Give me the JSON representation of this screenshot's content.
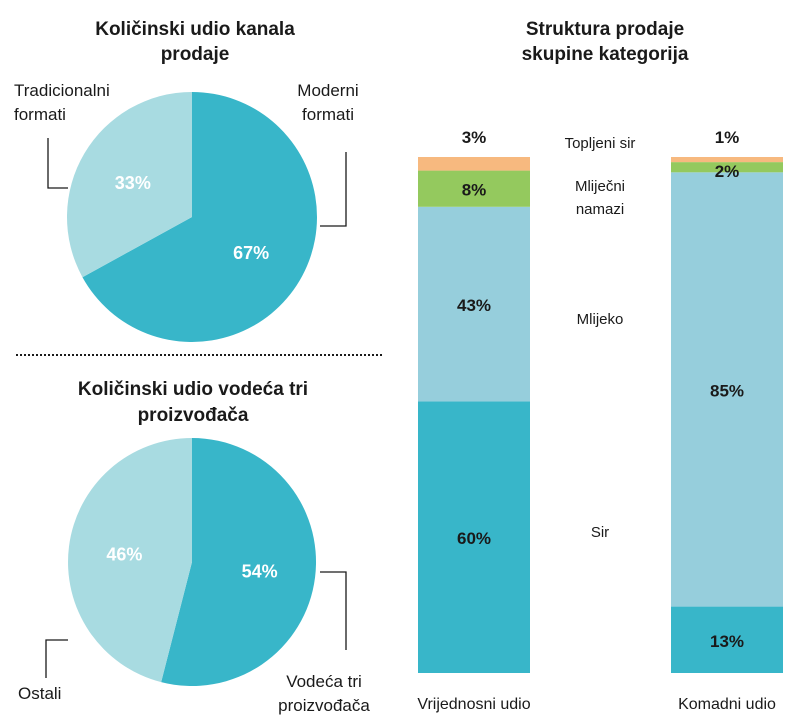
{
  "colors": {
    "dark_teal": "#38b6c9",
    "light_teal": "#a8dbe1",
    "mid_blue": "#96cedc",
    "green": "#94c95e",
    "orange": "#f7b97f",
    "text": "#1a1a1a",
    "white": "#ffffff"
  },
  "chart_data": [
    {
      "type": "pie",
      "title": "Količinski udio kanala prodaje",
      "title_lines": [
        "Količinski udio kanala",
        "prodaje"
      ],
      "slices": [
        {
          "label": "Moderni formati",
          "label_lines": [
            "Moderni",
            "formati"
          ],
          "value": 67,
          "value_label": "67%",
          "color": "#38b6c9"
        },
        {
          "label": "Tradicionalni formati",
          "label_lines": [
            "Tradicionalni",
            "formati"
          ],
          "value": 33,
          "value_label": "33%",
          "color": "#a8dbe1"
        }
      ]
    },
    {
      "type": "pie",
      "title": "Količinski udio vodeća tri proizvođača",
      "title_lines": [
        "Količinski udio vodeća tri",
        "proizvođača"
      ],
      "slices": [
        {
          "label": "Vodeća tri proizvođača",
          "label_lines": [
            "Vodeća tri",
            "proizvođača"
          ],
          "value": 54,
          "value_label": "54%",
          "color": "#38b6c9"
        },
        {
          "label": "Ostali",
          "label_lines": [
            "Ostali"
          ],
          "value": 46,
          "value_label": "46%",
          "color": "#a8dbe1"
        }
      ]
    },
    {
      "type": "bar",
      "stacked": true,
      "percent": true,
      "title": "Struktura prodaje skupine kategorija",
      "title_lines": [
        "Struktura prodaje",
        "skupine kategorija"
      ],
      "categories": [
        "Vrijednosni udio",
        "Komadni udio"
      ],
      "series": [
        {
          "name": "Sir",
          "name_lines": [
            "Sir"
          ],
          "values": [
            60,
            13
          ],
          "labels": [
            "60%",
            "13%"
          ],
          "color": "#38b6c9"
        },
        {
          "name": "Mlijeko",
          "name_lines": [
            "Mlijeko"
          ],
          "values": [
            43,
            85
          ],
          "labels": [
            "43%",
            "85%"
          ],
          "color": "#96cedc"
        },
        {
          "name": "Mliječni namazi",
          "name_lines": [
            "Mliječni",
            "namazi"
          ],
          "values": [
            8,
            2
          ],
          "labels": [
            "8%",
            "2%"
          ],
          "color": "#94c95e"
        },
        {
          "name": "Topljeni sir",
          "name_lines": [
            "Topljeni sir"
          ],
          "values": [
            3,
            1
          ],
          "labels": [
            "3%",
            "1%"
          ],
          "color": "#f7b97f"
        }
      ]
    }
  ]
}
